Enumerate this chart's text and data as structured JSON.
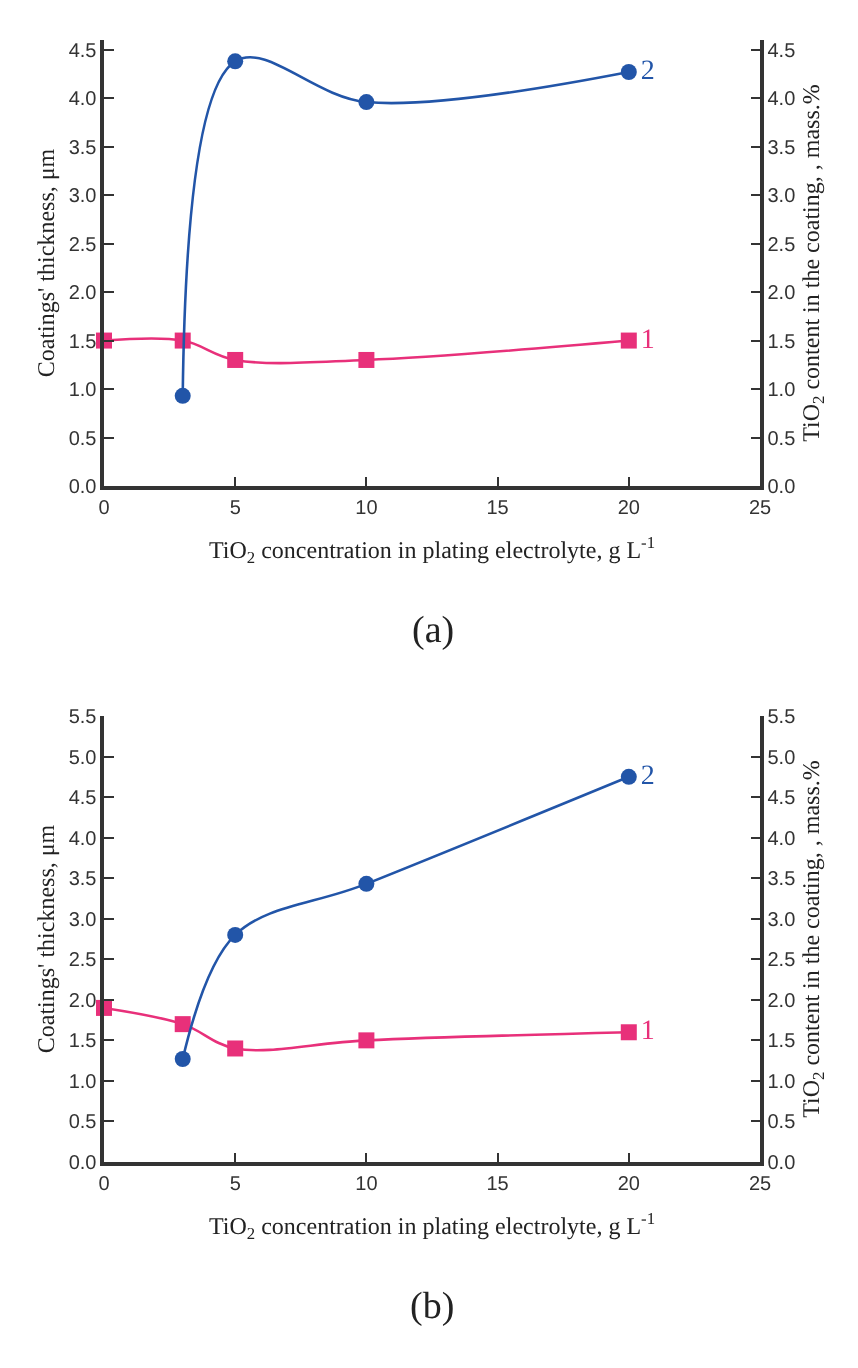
{
  "chart_data": [
    {
      "type": "line",
      "xlabel": "TiO$_{2}$ concentration in plating electrolyte, g L$^{-1}$",
      "ylabel": "Coatings' thickness, μm",
      "y2label": "TiO$_{2}$ content in the coating, , mass.%",
      "annotations": [
        "(a)"
      ],
      "xlim": [
        0,
        25
      ],
      "xticks": [
        0,
        5,
        10,
        15,
        20,
        25
      ],
      "ylim": [
        0,
        4.6
      ],
      "yticks": [
        {
          "value": 0,
          "label": "0.0"
        },
        0.5,
        {
          "value": 1,
          "label": "1.0"
        },
        1.5,
        {
          "value": 2,
          "label": "2.0"
        },
        2.5,
        {
          "value": 3,
          "label": "3.0"
        },
        3.5,
        {
          "value": 4,
          "label": "4.0"
        },
        4.5
      ],
      "y2lim": [
        0,
        4.6
      ],
      "y2ticks": [
        {
          "value": 0,
          "label": "0.0"
        },
        0.5,
        {
          "value": 1,
          "label": "1.0"
        },
        1.5,
        {
          "value": 2,
          "label": "2.0"
        },
        2.5,
        {
          "value": 3,
          "label": "3.0"
        },
        3.5,
        {
          "value": 4,
          "label": "4.0"
        },
        4.5
      ],
      "legend": false,
      "series": [
        {
          "name": "1",
          "color": "#e8307a",
          "marker": "square",
          "x": [
            0,
            3,
            5,
            10,
            20
          ],
          "values": [
            1.5,
            1.5,
            1.3,
            1.3,
            1.5
          ]
        },
        {
          "name": "2",
          "color": "#2255a8",
          "marker": "circle",
          "axis": "y2",
          "x": [
            3,
            5,
            10,
            20
          ],
          "values": [
            0.93,
            4.38,
            3.96,
            4.27
          ]
        }
      ]
    },
    {
      "type": "line",
      "xlabel": "TiO$_{2}$ concentration in plating electrolyte, g L$^{-1}$",
      "ylabel": "Coatings' thickness, μm",
      "y2label": "TiO$_{2}$ content in the coating, , mass.%",
      "annotations": [
        "(b)"
      ],
      "xlim": [
        0,
        25
      ],
      "xticks": [
        0,
        5,
        10,
        15,
        20,
        25
      ],
      "ylim": [
        0,
        5.5
      ],
      "yticks": [
        {
          "value": 0,
          "label": "0.0"
        },
        0.5,
        {
          "value": 1,
          "label": "1.0"
        },
        1.5,
        {
          "value": 2,
          "label": "2.0"
        },
        2.5,
        {
          "value": 3,
          "label": "3.0"
        },
        3.5,
        {
          "value": 4,
          "label": "4.0"
        },
        4.5,
        {
          "value": 5,
          "label": "5.0"
        },
        5.5
      ],
      "y2lim": [
        0,
        5.5
      ],
      "y2ticks": [
        {
          "value": 0,
          "label": "0.0"
        },
        0.5,
        {
          "value": 1,
          "label": "1.0"
        },
        1.5,
        {
          "value": 2,
          "label": "2.0"
        },
        2.5,
        {
          "value": 3,
          "label": "3.0"
        },
        3.5,
        {
          "value": 4,
          "label": "4.0"
        },
        4.5,
        {
          "value": 5,
          "label": "5.0"
        },
        5.5
      ],
      "legend": false,
      "series": [
        {
          "name": "1",
          "color": "#e8307a",
          "marker": "square",
          "x": [
            0,
            3,
            5,
            10,
            20
          ],
          "values": [
            1.9,
            1.7,
            1.4,
            1.5,
            1.6
          ]
        },
        {
          "name": "2",
          "color": "#2255a8",
          "marker": "circle",
          "axis": "y2",
          "x": [
            3,
            5,
            10,
            20
          ],
          "values": [
            1.27,
            2.8,
            3.43,
            4.75
          ]
        }
      ]
    }
  ]
}
